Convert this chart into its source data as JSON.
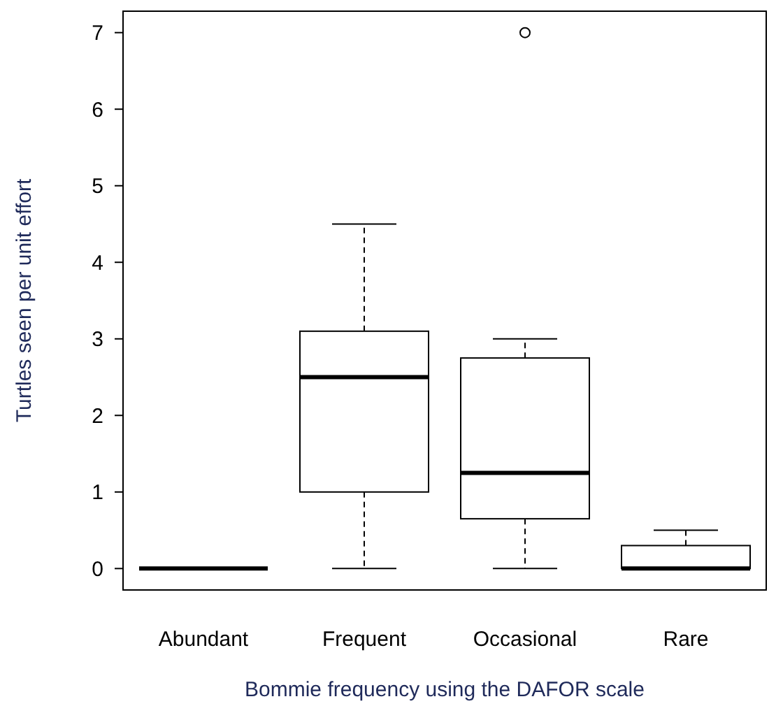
{
  "chart_data": {
    "type": "box",
    "xlabel": "Bommie frequency using the DAFOR scale",
    "ylabel": "Turtles seen per unit effort",
    "categories": [
      "Abundant",
      "Frequent",
      "Occasional",
      "Rare"
    ],
    "boxes": [
      {
        "low": 0,
        "q1": 0,
        "median": 0,
        "q3": 0,
        "high": 0
      },
      {
        "low": 0,
        "q1": 1,
        "median": 2.5,
        "q3": 3.1,
        "high": 4.5
      },
      {
        "low": 0,
        "q1": 0.65,
        "median": 1.25,
        "q3": 2.75,
        "high": 3,
        "outliers": [
          7
        ]
      },
      {
        "low": 0,
        "q1": 0,
        "median": 0,
        "q3": 0.3,
        "high": 0.5
      }
    ],
    "ylim": [
      -0.28,
      7.28
    ],
    "yticks": [
      0,
      1,
      2,
      3,
      4,
      5,
      6,
      7
    ],
    "grid": false
  }
}
